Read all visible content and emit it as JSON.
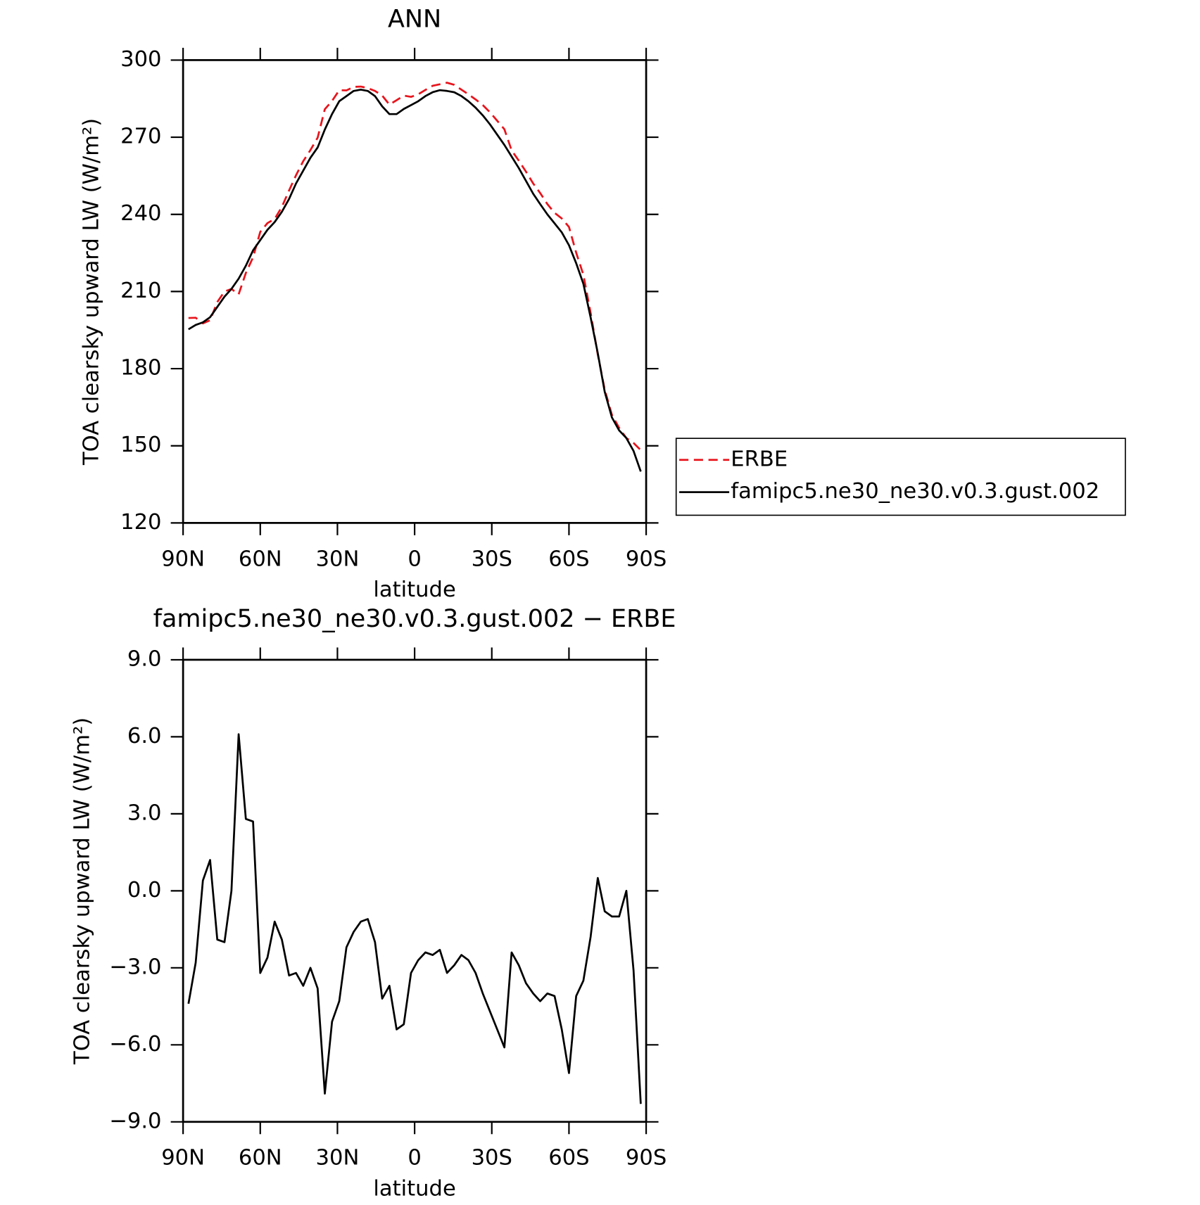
{
  "chart_data": [
    {
      "type": "line",
      "title": "ANN",
      "xlabel": "latitude",
      "ylabel": "TOA clearsky upward LW (W/m²)",
      "x": [
        87.9,
        85.1,
        82.3,
        79.5,
        76.7,
        73.9,
        71.2,
        68.4,
        65.6,
        62.8,
        60.0,
        57.2,
        54.4,
        51.6,
        48.8,
        46.1,
        43.3,
        40.5,
        37.7,
        34.9,
        32.1,
        29.3,
        26.5,
        23.7,
        20.9,
        18.2,
        15.4,
        12.6,
        9.8,
        7.0,
        4.2,
        1.4,
        -1.4,
        -4.2,
        -7.0,
        -9.8,
        -12.6,
        -15.4,
        -18.2,
        -20.9,
        -23.7,
        -26.5,
        -29.3,
        -32.1,
        -34.9,
        -37.7,
        -40.5,
        -43.3,
        -46.1,
        -48.8,
        -51.6,
        -54.4,
        -57.2,
        -60.0,
        -62.8,
        -65.6,
        -68.4,
        -71.2,
        -73.9,
        -76.7,
        -79.5,
        -82.3,
        -85.1,
        -87.9
      ],
      "series": [
        {
          "name": "ERBE",
          "color": "#e8141c",
          "style": "dashed",
          "values": [
            199.7,
            199.8,
            197.6,
            198.8,
            205.9,
            210,
            211,
            208.9,
            217.2,
            223.3,
            233.2,
            236.6,
            238.2,
            242.9,
            249.3,
            255.2,
            260.7,
            265,
            269.8,
            280.9,
            284.1,
            288.3,
            288.2,
            289.6,
            289.7,
            289.1,
            288,
            286.2,
            282.7,
            284.4,
            286.2,
            285.7,
            286.7,
            288.4,
            290,
            290.6,
            291.2,
            290.4,
            288.5,
            286.7,
            284.7,
            282.5,
            279.7,
            276.4,
            273.1,
            264.9,
            260.9,
            256.6,
            252,
            248.3,
            244,
            240.6,
            238.4,
            235.1,
            225.1,
            216.5,
            201.8,
            185.5,
            171.8,
            162,
            157,
            153,
            151.1,
            148.3
          ]
        },
        {
          "name": "famipc5.ne30_ne30.v0.3.gust.002",
          "color": "#000000",
          "style": "solid",
          "values": [
            195.3,
            197,
            198,
            200,
            204,
            208,
            211,
            215,
            220,
            226,
            230,
            234,
            237,
            241,
            246,
            252,
            257,
            262,
            266,
            273,
            279,
            284,
            286,
            288,
            288.5,
            288,
            286,
            282,
            279,
            279,
            281,
            282.5,
            284,
            286,
            287.5,
            288.3,
            288,
            287.5,
            286,
            284,
            281.5,
            278.5,
            275,
            271,
            267,
            262.5,
            258,
            253,
            248,
            244,
            240,
            236.5,
            233,
            228,
            221,
            213,
            200,
            186,
            171,
            161,
            156,
            153,
            148,
            140
          ]
        }
      ],
      "xlim": [
        90,
        -90
      ],
      "xticks": [
        {
          "value": 90,
          "label": "90N"
        },
        {
          "value": 60,
          "label": "60N"
        },
        {
          "value": 30,
          "label": "30N"
        },
        0,
        {
          "value": -30,
          "label": "30S"
        },
        {
          "value": -60,
          "label": "60S"
        },
        {
          "value": -90,
          "label": "90S"
        }
      ],
      "ylim": [
        120,
        300
      ],
      "yticks": [
        120,
        150,
        180,
        210,
        240,
        270,
        300
      ],
      "legend": "right",
      "grid": false
    },
    {
      "type": "line",
      "title": "famipc5.ne30_ne30.v0.3.gust.002 − ERBE",
      "xlabel": "latitude",
      "ylabel": "TOA clearsky upward LW (W/m²)",
      "x": [
        87.9,
        85.1,
        82.3,
        79.5,
        76.7,
        73.9,
        71.2,
        68.4,
        65.6,
        62.8,
        60.0,
        57.2,
        54.4,
        51.6,
        48.8,
        46.1,
        43.3,
        40.5,
        37.7,
        34.9,
        32.1,
        29.3,
        26.5,
        23.7,
        20.9,
        18.2,
        15.4,
        12.6,
        9.8,
        7.0,
        4.2,
        1.4,
        -1.4,
        -4.2,
        -7.0,
        -9.8,
        -12.6,
        -15.4,
        -18.2,
        -20.9,
        -23.7,
        -26.5,
        -29.3,
        -32.1,
        -34.9,
        -37.7,
        -40.5,
        -43.3,
        -46.1,
        -48.8,
        -51.6,
        -54.4,
        -57.2,
        -60.0,
        -62.8,
        -65.6,
        -68.4,
        -71.2,
        -73.9,
        -76.7,
        -79.5,
        -82.3,
        -85.1,
        -87.9
      ],
      "series": [
        {
          "color": "#000000",
          "style": "solid",
          "values": [
            -4.4,
            -2.8,
            0.4,
            1.2,
            -1.9,
            -2.0,
            0.0,
            6.1,
            2.8,
            2.7,
            -3.2,
            -2.6,
            -1.2,
            -1.9,
            -3.3,
            -3.2,
            -3.7,
            -3.0,
            -3.8,
            -7.9,
            -5.1,
            -4.3,
            -2.2,
            -1.6,
            -1.2,
            -1.1,
            -2.0,
            -4.2,
            -3.7,
            -5.4,
            -5.2,
            -3.2,
            -2.7,
            -2.4,
            -2.5,
            -2.3,
            -3.2,
            -2.9,
            -2.5,
            -2.7,
            -3.2,
            -4.0,
            -4.7,
            -5.4,
            -6.1,
            -2.4,
            -2.9,
            -3.6,
            -4.0,
            -4.3,
            -4.0,
            -4.1,
            -5.4,
            -7.1,
            -4.1,
            -3.5,
            -1.8,
            0.5,
            -0.8,
            -1.0,
            -1.0,
            0.0,
            -3.1,
            -8.3
          ]
        }
      ],
      "xlim": [
        90,
        -90
      ],
      "xticks": [
        {
          "value": 90,
          "label": "90N"
        },
        {
          "value": 60,
          "label": "60N"
        },
        {
          "value": 30,
          "label": "30N"
        },
        0,
        {
          "value": -30,
          "label": "30S"
        },
        {
          "value": -60,
          "label": "60S"
        },
        {
          "value": -90,
          "label": "90S"
        }
      ],
      "ylim": [
        -9,
        9
      ],
      "yticks": [
        {
          "value": -9,
          "label": "−9.0"
        },
        {
          "value": -6,
          "label": "−6.0"
        },
        {
          "value": -3,
          "label": "−3.0"
        },
        {
          "value": 0,
          "label": "0.0"
        },
        {
          "value": 3,
          "label": "3.0"
        },
        {
          "value": 6,
          "label": "6.0"
        },
        {
          "value": 9,
          "label": "9.0"
        }
      ],
      "grid": false
    }
  ]
}
